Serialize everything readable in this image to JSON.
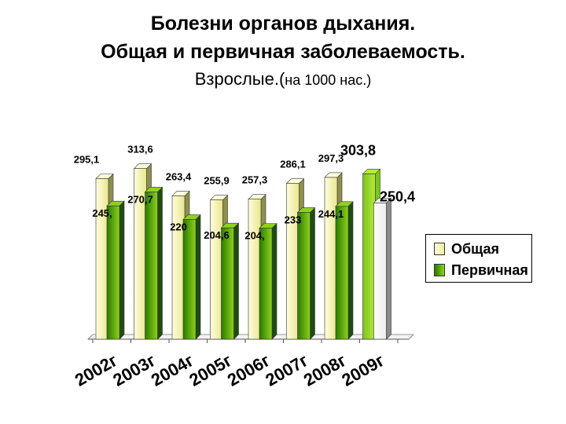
{
  "title": {
    "line1": "Болезни органов дыхания.",
    "line2": "Общая и первичная заболеваемость.",
    "line3_main": "Взрослые.(",
    "line3_small": "на 1000 нас.)"
  },
  "chart_data": {
    "type": "bar",
    "style": "3d-clustered",
    "categories": [
      "2002г",
      "2003г",
      "2004г",
      "2005г",
      "2006г",
      "2007г",
      "2008г",
      "2009г"
    ],
    "series": [
      {
        "name": "Общая",
        "values": [
          295.1,
          313.6,
          263.4,
          255.9,
          257.3,
          286.1,
          297.3,
          303.8
        ],
        "labels": [
          "295,1",
          "313,6",
          "263,4",
          "255,9",
          "257,3",
          "286,1",
          "297,3",
          "303,8"
        ]
      },
      {
        "name": "Первичная",
        "values": [
          245.0,
          270.7,
          220,
          204.6,
          204.0,
          233,
          244.1,
          250.4
        ],
        "labels": [
          "245,",
          "270,7",
          "220",
          "204,6",
          "204,",
          "233",
          "244,1",
          "250,4"
        ]
      }
    ],
    "ylim": [
      0,
      330
    ],
    "grid": false,
    "legend_position": "right",
    "colors": {
      "total_light": "#fffde0",
      "total_dark": "#e9e78a",
      "total_side": "#8f8f4e",
      "primary_light": "#8fd21c",
      "primary_dark": "#2a7a00",
      "primary_side": "#1f4d10",
      "last_total_light": "#b5ea3a",
      "last_total_dark": "#7cc41e",
      "last_primary_light": "#ffffff",
      "last_primary_dark": "#f0f0f0",
      "last_primary_side": "#8a8a8a"
    }
  },
  "legend": {
    "items": [
      {
        "label": "Общая"
      },
      {
        "label": "Первичная"
      }
    ]
  }
}
